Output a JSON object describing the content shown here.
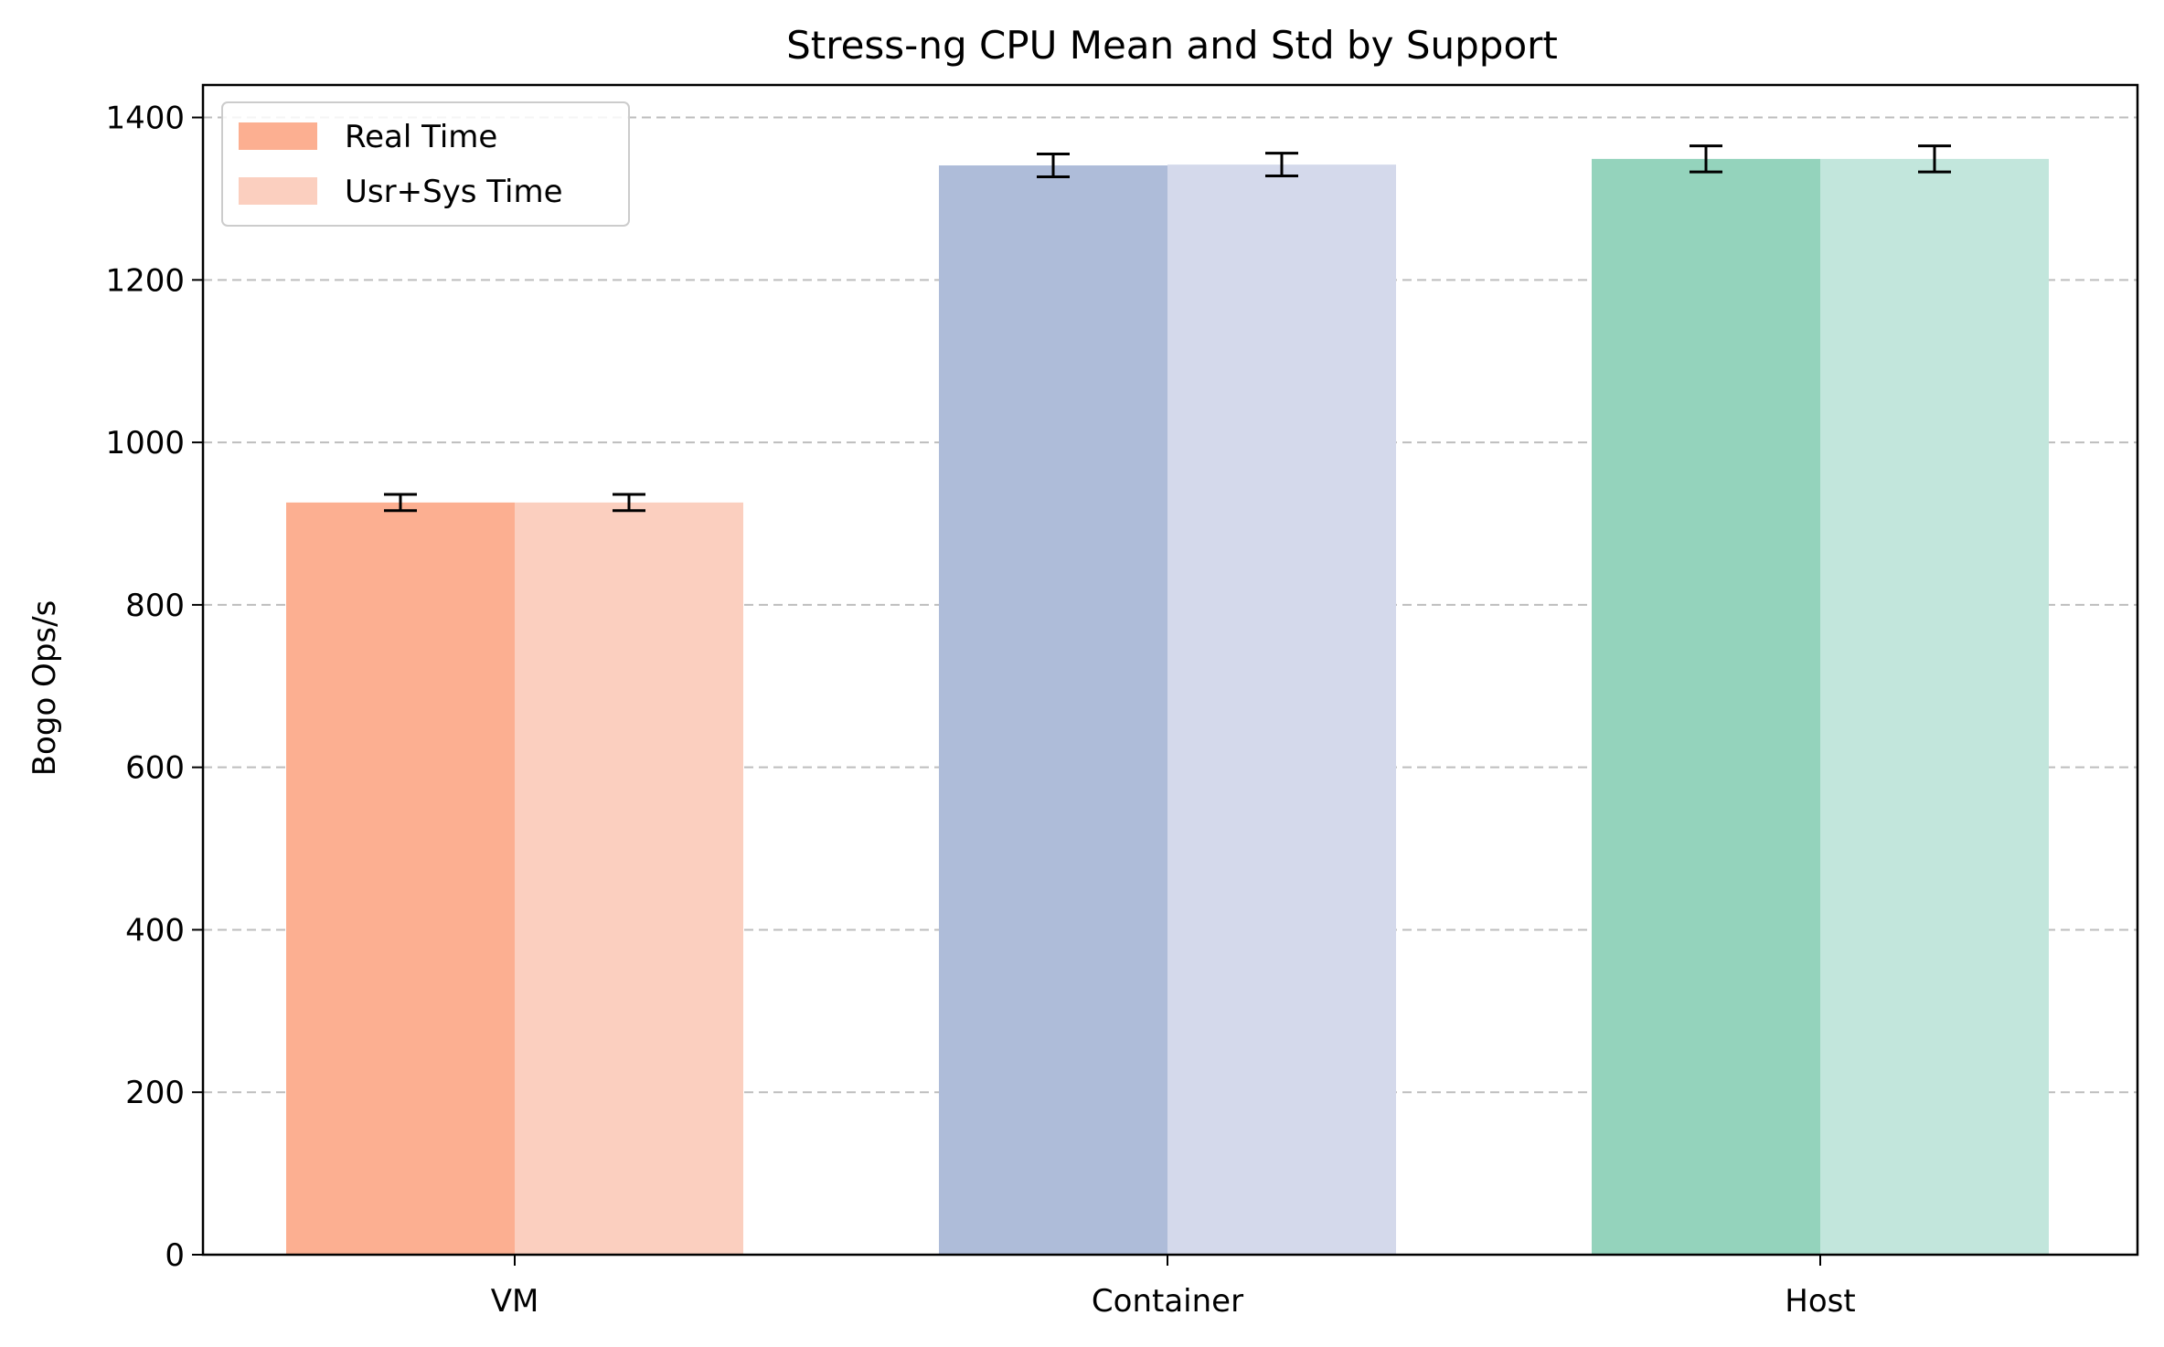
{
  "chart_data": {
    "type": "bar",
    "title": "Stress-ng CPU Mean and Std by Support",
    "xlabel": "",
    "ylabel": "Bogo Ops/s",
    "categories": [
      "VM",
      "Container",
      "Host"
    ],
    "ylim": [
      0,
      1440
    ],
    "yticks": [
      0,
      200,
      400,
      600,
      800,
      1000,
      1200,
      1400
    ],
    "grid": "y dashed",
    "legend_position": "top-left",
    "series": [
      {
        "name": "Real Time",
        "values": [
          926,
          1341,
          1349
        ],
        "errors": [
          10,
          14,
          16
        ],
        "colors": [
          "#fcaf91",
          "#aebcd9",
          "#94d3bc"
        ]
      },
      {
        "name": "Usr+Sys Time",
        "values": [
          926,
          1342,
          1349
        ],
        "errors": [
          10,
          14,
          16
        ],
        "colors": [
          "#fbcfbf",
          "#d4d9eb",
          "#c2e6dc"
        ]
      }
    ]
  }
}
